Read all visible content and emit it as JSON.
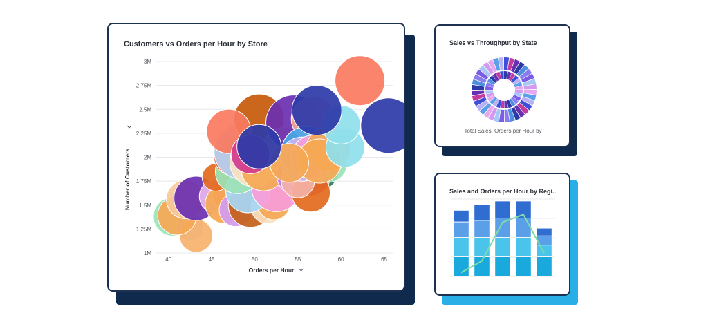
{
  "colors": {
    "card_border": "#1d3152",
    "shadow_navy": "#0f2a4d",
    "shadow_blue": "#2aaee6",
    "gridline": "#e6e8eb",
    "text": "#2b2f36",
    "axis_text": "#55595f"
  },
  "cards": {
    "main": {
      "title": "Customers vs Orders per Hour by Store",
      "xlabel": "Orders per Hour",
      "ylabel": "Number of Customers",
      "axis_menu_icon": "chevron-down-icon"
    },
    "state": {
      "title": "Sales vs Throughput by State",
      "caption": "Total Sales, Orders per Hour by"
    },
    "region": {
      "title": "Sales and Orders per Hour by Regi.."
    }
  },
  "chart_data": [
    {
      "type": "scatter",
      "title": "Customers vs Orders per Hour by Store",
      "xlabel": "Orders per Hour",
      "ylabel": "Number of Customers",
      "xlim": [
        38.5,
        66
      ],
      "ylim": [
        1000000,
        3000000
      ],
      "x_ticks": [
        40,
        45,
        50,
        55,
        60,
        65
      ],
      "x_tick_labels": [
        "40",
        "45",
        "50",
        "55",
        "60",
        "65"
      ],
      "y_ticks": [
        1000000,
        1250000,
        1500000,
        1750000,
        2000000,
        2250000,
        2500000,
        2750000,
        3000000
      ],
      "y_tick_labels": [
        "1M",
        "1.25M",
        "1.5M",
        "1.75M",
        "2M",
        "2.25M",
        "2.5M",
        "2.75M",
        "3M"
      ],
      "grid": true,
      "points": [
        {
          "x": 40.5,
          "y": 1380000,
          "r": 3.5,
          "color": "#9be3b6"
        },
        {
          "x": 42.5,
          "y": 1270000,
          "r": 2.5,
          "color": "#a9c8f5"
        },
        {
          "x": 43.2,
          "y": 1180000,
          "r": 3.0,
          "color": "#f7b26b"
        },
        {
          "x": 41.0,
          "y": 1390000,
          "r": 3.5,
          "color": "#f5a855"
        },
        {
          "x": 42.0,
          "y": 1560000,
          "r": 3.5,
          "color": "#f8c99a"
        },
        {
          "x": 43.2,
          "y": 1570000,
          "r": 4.0,
          "color": "#6a2fb0"
        },
        {
          "x": 45.5,
          "y": 1590000,
          "r": 3.0,
          "color": "#e8b7ec"
        },
        {
          "x": 47.0,
          "y": 1610000,
          "r": 3.0,
          "color": "#f06a5a"
        },
        {
          "x": 46.5,
          "y": 1510000,
          "r": 3.5,
          "color": "#f5a855"
        },
        {
          "x": 45.5,
          "y": 1790000,
          "r": 2.5,
          "color": "#e36a1e"
        },
        {
          "x": 47.8,
          "y": 1450000,
          "r": 3.0,
          "color": "#d29bf0"
        },
        {
          "x": 49.5,
          "y": 1500000,
          "r": 4.0,
          "color": "#c4611a"
        },
        {
          "x": 51.5,
          "y": 1480000,
          "r": 3.0,
          "color": "#fbe2c0"
        },
        {
          "x": 52.2,
          "y": 1520000,
          "r": 3.0,
          "color": "#f5a855"
        },
        {
          "x": 49.2,
          "y": 1650000,
          "r": 4.0,
          "color": "#a6d7f5"
        },
        {
          "x": 52.5,
          "y": 1690000,
          "r": 4.5,
          "color": "#f79cd8"
        },
        {
          "x": 48.0,
          "y": 1850000,
          "r": 4.0,
          "color": "#9be3b6"
        },
        {
          "x": 47.5,
          "y": 2010000,
          "r": 3.5,
          "color": "#f05a28"
        },
        {
          "x": 48.5,
          "y": 2060000,
          "r": 5.0,
          "color": "#b4d2f5"
        },
        {
          "x": 50.0,
          "y": 1950000,
          "r": 4.5,
          "color": "#fbe2c0"
        },
        {
          "x": 51.0,
          "y": 1880000,
          "r": 4.0,
          "color": "#f5a855"
        },
        {
          "x": 50.5,
          "y": 2400000,
          "r": 4.5,
          "color": "#c65a0a"
        },
        {
          "x": 53.5,
          "y": 2080000,
          "r": 4.0,
          "color": "#f5b7a3"
        },
        {
          "x": 54.5,
          "y": 2360000,
          "r": 5.0,
          "color": "#6a2fb0"
        },
        {
          "x": 56.8,
          "y": 2400000,
          "r": 4.0,
          "color": "#f4a99b"
        },
        {
          "x": 54.8,
          "y": 1810000,
          "r": 3.5,
          "color": "#b77df3"
        },
        {
          "x": 57.5,
          "y": 1860000,
          "r": 3.5,
          "color": "#2f7d57"
        },
        {
          "x": 56.5,
          "y": 1800000,
          "r": 3.5,
          "color": "#d13a8f"
        },
        {
          "x": 56.5,
          "y": 1630000,
          "r": 3.5,
          "color": "#e36a1e"
        },
        {
          "x": 55.0,
          "y": 1750000,
          "r": 3.0,
          "color": "#f4b2a6"
        },
        {
          "x": 58.5,
          "y": 1940000,
          "r": 3.5,
          "color": "#9be3b6"
        },
        {
          "x": 56.0,
          "y": 2060000,
          "r": 4.5,
          "color": "#4aa8e8"
        },
        {
          "x": 55.5,
          "y": 1980000,
          "r": 4.0,
          "color": "#c7b2f2"
        },
        {
          "x": 56.8,
          "y": 2000000,
          "r": 4.0,
          "color": "#f79cd8"
        },
        {
          "x": 58.5,
          "y": 2080000,
          "r": 4.0,
          "color": "#f5a855"
        },
        {
          "x": 57.5,
          "y": 1960000,
          "r": 4.0,
          "color": "#f5a855"
        },
        {
          "x": 54.0,
          "y": 1940000,
          "r": 3.5,
          "color": "#f5a855"
        },
        {
          "x": 60.5,
          "y": 2100000,
          "r": 3.5,
          "color": "#8fe0ec"
        },
        {
          "x": 60.0,
          "y": 2340000,
          "r": 3.5,
          "color": "#8fe0ec"
        },
        {
          "x": 57.2,
          "y": 2490000,
          "r": 4.5,
          "color": "#2c3aa8"
        },
        {
          "x": 47.0,
          "y": 2270000,
          "r": 4.0,
          "color": "#fa7a60"
        },
        {
          "x": 49.5,
          "y": 2030000,
          "r": 3.5,
          "color": "#d13a8f"
        },
        {
          "x": 50.5,
          "y": 2110000,
          "r": 4.0,
          "color": "#2c3aa8"
        },
        {
          "x": 62.2,
          "y": 2800000,
          "r": 4.5,
          "color": "#fa7a60"
        },
        {
          "x": 65.5,
          "y": 2330000,
          "r": 5.0,
          "color": "#2c3aa8"
        }
      ]
    },
    {
      "type": "pie",
      "title": "Sales vs Throughput by State",
      "description": "Two-ring sunburst of state segments",
      "rings": [
        {
          "name": "outer",
          "segments": 36
        },
        {
          "name": "inner",
          "segments": 28
        }
      ]
    },
    {
      "type": "bar",
      "title": "Sales and Orders per Hour by Regi..",
      "categories": [
        "",
        "",
        "",
        "",
        ""
      ],
      "series": [
        {
          "color": "#1aa9dc",
          "values": [
            25,
            25,
            25,
            25,
            25
          ]
        },
        {
          "color": "#4bc4ec",
          "values": [
            25,
            25,
            25,
            25,
            15
          ]
        },
        {
          "color": "#5b9fe8",
          "values": [
            20,
            22,
            25,
            25,
            12
          ]
        },
        {
          "color": "#2f6dd0",
          "values": [
            15,
            20,
            22,
            22,
            10
          ]
        }
      ],
      "line_series": {
        "color": "#7fdca8",
        "values": [
          5,
          20,
          70,
          80,
          30
        ]
      },
      "ylim": [
        0,
        100
      ]
    }
  ]
}
